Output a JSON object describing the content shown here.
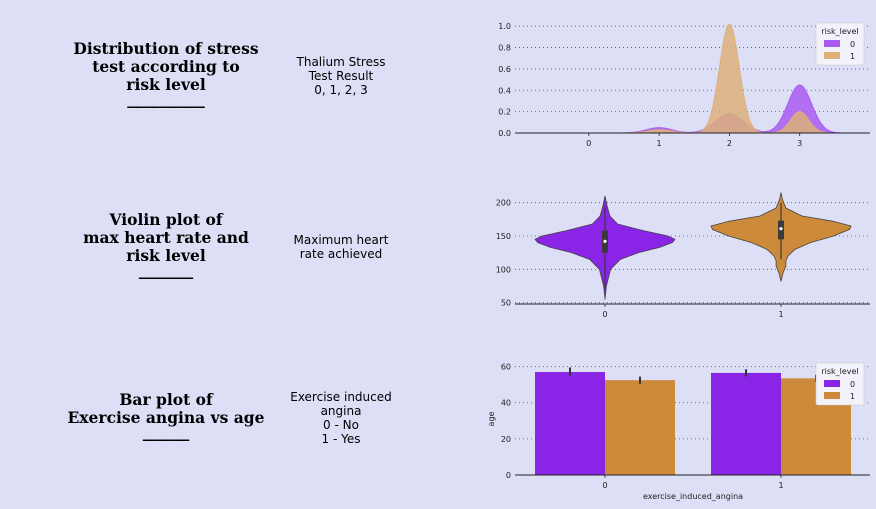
{
  "rows": [
    {
      "heading": [
        "Distribution of stress",
        "test according to",
        "risk level",
        "__________"
      ],
      "description": [
        "Thalium Stress",
        "Test Result",
        "0, 1, 2, 3"
      ]
    },
    {
      "heading": [
        "Violin plot of",
        "max heart rate and",
        "risk level",
        "_______"
      ],
      "description": [
        "Maximum heart",
        "rate achieved"
      ]
    },
    {
      "heading": [
        "Bar plot of",
        "Exercise angina vs age",
        "______"
      ],
      "description": [
        "Exercise induced",
        "angina",
        "0 - No",
        "1 - Yes"
      ]
    }
  ],
  "colors": {
    "background": "#dcdff5",
    "risk_0": "#8a24e6",
    "risk_1": "#cc8a3a",
    "kde_0": "#a95cf0",
    "kde_1": "#ddb07a"
  },
  "chart_data": [
    {
      "type": "area",
      "subtype": "kde",
      "title": "",
      "xlabel": "",
      "ylabel": "",
      "x_ticks": [
        0,
        1,
        2,
        3
      ],
      "y_ticks": [
        0.0,
        0.2,
        0.4,
        0.6,
        0.8,
        1.0
      ],
      "y_tick_labels": [
        "0.0",
        "0.2",
        "0.4",
        "0.6",
        "0.8",
        "1.0"
      ],
      "xlim": [
        -1.05,
        4.0
      ],
      "ylim": [
        0,
        1.03
      ],
      "grid": "horizontal-dotted",
      "legend": {
        "title": "risk_level",
        "position": "top-right",
        "entries": [
          "0",
          "1"
        ]
      },
      "series": [
        {
          "name": "0",
          "peaks": [
            {
              "x": 1,
              "height": 0.05,
              "width": 0.18
            },
            {
              "x": 2,
              "height": 0.18,
              "width": 0.2
            },
            {
              "x": 3,
              "height": 0.45,
              "width": 0.17
            }
          ]
        },
        {
          "name": "1",
          "peaks": [
            {
              "x": 1,
              "height": 0.03,
              "width": 0.17
            },
            {
              "x": 2,
              "height": 1.02,
              "width": 0.14
            },
            {
              "x": 3,
              "height": 0.2,
              "width": 0.13
            }
          ]
        }
      ]
    },
    {
      "type": "violin",
      "title": "",
      "xlabel": "",
      "ylabel": "",
      "categories": [
        "0",
        "1"
      ],
      "y_ticks": [
        50,
        100,
        150,
        200
      ],
      "ylim": [
        48,
        210
      ],
      "grid": "horizontal-dotted",
      "series": [
        {
          "name": "0",
          "min": 55,
          "max": 210,
          "q1": 125,
          "median": 142,
          "q3": 158,
          "whisker_low": 71,
          "whisker_high": 195,
          "profile": [
            [
              55,
              0
            ],
            [
              75,
              0.02
            ],
            [
              100,
              0.08
            ],
            [
              115,
              0.22
            ],
            [
              125,
              0.48
            ],
            [
              133,
              0.78
            ],
            [
              140,
              0.96
            ],
            [
              145,
              1.0
            ],
            [
              150,
              0.9
            ],
            [
              158,
              0.55
            ],
            [
              168,
              0.18
            ],
            [
              180,
              0.07
            ],
            [
              195,
              0.03
            ],
            [
              210,
              0
            ]
          ]
        },
        {
          "name": "1",
          "min": 82,
          "max": 215,
          "q1": 145,
          "median": 161,
          "q3": 173,
          "whisker_low": 115,
          "whisker_high": 200,
          "profile": [
            [
              82,
              0
            ],
            [
              95,
              0.03
            ],
            [
              105,
              0.07
            ],
            [
              113,
              0.07
            ],
            [
              120,
              0.1
            ],
            [
              130,
              0.2
            ],
            [
              140,
              0.42
            ],
            [
              150,
              0.75
            ],
            [
              160,
              0.98
            ],
            [
              165,
              1.0
            ],
            [
              172,
              0.75
            ],
            [
              180,
              0.3
            ],
            [
              192,
              0.07
            ],
            [
              205,
              0.02
            ],
            [
              215,
              0
            ]
          ]
        }
      ]
    },
    {
      "type": "bar",
      "title": "",
      "xlabel": "exercise_induced_angina",
      "ylabel": "age",
      "categories": [
        "0",
        "1"
      ],
      "y_ticks": [
        0,
        20,
        40,
        60
      ],
      "ylim": [
        0,
        62
      ],
      "grid": "horizontal-dotted",
      "legend": {
        "title": "risk_level",
        "position": "top-right",
        "entries": [
          "0",
          "1"
        ]
      },
      "series": [
        {
          "name": "0",
          "values": [
            57,
            56.5
          ],
          "err_low": [
            55,
            54.5
          ],
          "err_high": [
            59.5,
            58.5
          ]
        },
        {
          "name": "1",
          "values": [
            52.5,
            53.5
          ],
          "err_low": [
            50.5,
            51.5
          ],
          "err_high": [
            54.5,
            55.5
          ]
        }
      ]
    }
  ]
}
